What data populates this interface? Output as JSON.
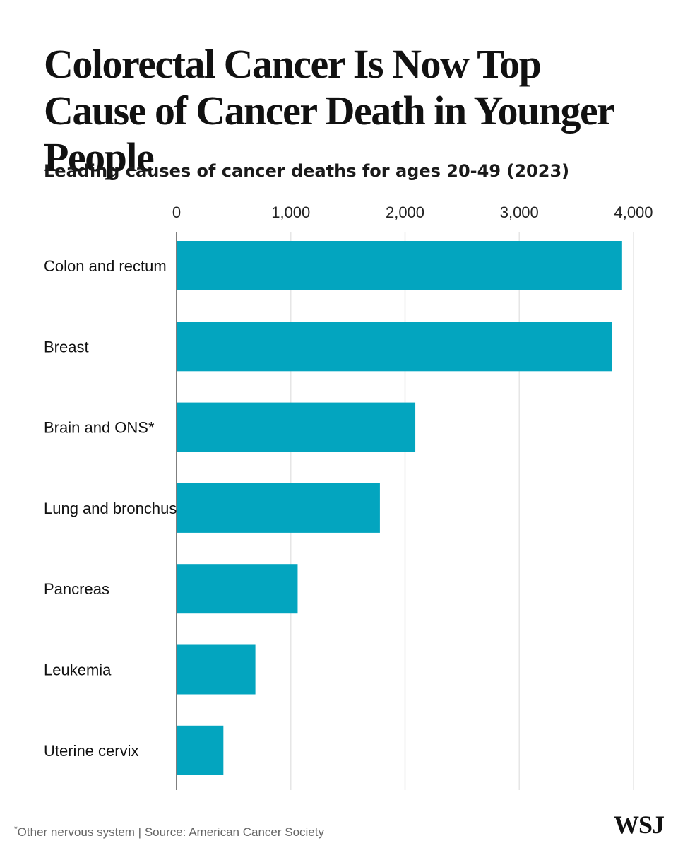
{
  "chart_data": {
    "type": "bar",
    "orientation": "horizontal",
    "title": "Colorectal Cancer Is Now Top Cause of Cancer Death in Younger People",
    "subtitle": "Leading causes of cancer deaths for ages 20-49 (2023)",
    "categories": [
      "Colon and rectum",
      "Breast",
      "Brain and ONS*",
      "Lung and bronchus",
      "Pancreas",
      "Leukemia",
      "Uterine cervix"
    ],
    "values": [
      3900,
      3810,
      2090,
      1780,
      1060,
      690,
      410
    ],
    "xlim": [
      0,
      4000
    ],
    "xticks": [
      0,
      1000,
      2000,
      3000,
      4000
    ],
    "xtick_labels": [
      "0",
      "1,000",
      "2,000",
      "3,000",
      "4,000"
    ],
    "xaxis_position": "top",
    "grid": true,
    "bar_color": "#03a5bf",
    "grid_color": "#e6e6e6",
    "axis_color": "#555555",
    "legend": "none"
  },
  "footnote": {
    "star": "*",
    "text": "Other nervous system | Source: American Cancer Society"
  },
  "logo": "WSJ"
}
